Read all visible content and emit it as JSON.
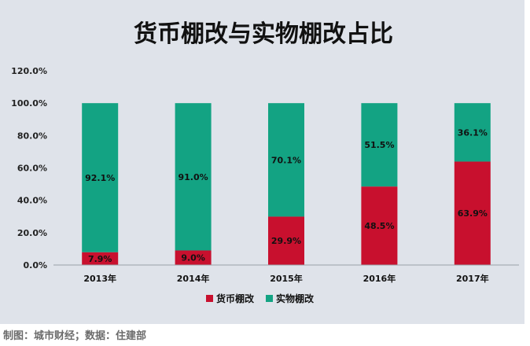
{
  "chart_data": {
    "type": "bar",
    "stacked": true,
    "title": "货币棚改与实物棚改占比",
    "categories": [
      "2013年",
      "2014年",
      "2015年",
      "2016年",
      "2017年"
    ],
    "series": [
      {
        "name": "货币棚改",
        "color": "#c8102e",
        "values": [
          7.9,
          9.0,
          29.9,
          48.5,
          63.9
        ],
        "labels": [
          "7.9%",
          "9.0%",
          "29.9%",
          "48.5%",
          "63.9%"
        ]
      },
      {
        "name": "实物棚改",
        "color": "#13a383",
        "values": [
          92.1,
          91.0,
          70.1,
          51.5,
          36.1
        ],
        "labels": [
          "92.1%",
          "91.0%",
          "70.1%",
          "51.5%",
          "36.1%"
        ]
      }
    ],
    "y_ticks": [
      "0.0%",
      "20.0%",
      "40.0%",
      "60.0%",
      "80.0%",
      "100.0%",
      "120.0%"
    ],
    "ylim": [
      0,
      120
    ],
    "grid": false,
    "legend_position": "bottom"
  },
  "source_note": "制图：城市财经；数据：住建部"
}
